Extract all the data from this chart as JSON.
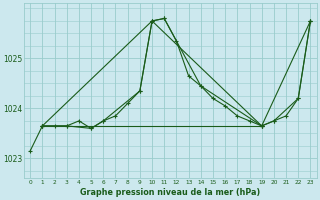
{
  "title": "Graphe pression niveau de la mer (hPa)",
  "bg_color": "#cce8ee",
  "grid_color": "#99cccc",
  "line_color": "#1a5c1a",
  "xlim": [
    -0.5,
    23.5
  ],
  "ylim": [
    1022.6,
    1026.1
  ],
  "yticks": [
    1023,
    1024,
    1025
  ],
  "xticks": [
    0,
    1,
    2,
    3,
    4,
    5,
    6,
    7,
    8,
    9,
    10,
    11,
    12,
    13,
    14,
    15,
    16,
    17,
    18,
    19,
    20,
    21,
    22,
    23
  ],
  "series1_x": [
    0,
    1,
    2,
    3,
    4,
    5,
    6,
    7,
    8,
    9,
    10,
    11,
    12,
    13,
    14,
    15,
    16,
    17,
    18,
    19,
    20,
    21,
    22,
    23
  ],
  "series1_y": [
    1023.15,
    1023.65,
    1023.65,
    1023.65,
    1023.75,
    1023.6,
    1023.75,
    1023.85,
    1024.1,
    1024.35,
    1025.75,
    1025.8,
    1025.35,
    1024.65,
    1024.45,
    1024.2,
    1024.05,
    1023.85,
    1023.75,
    1023.65,
    1023.75,
    1023.85,
    1024.2,
    1025.75
  ],
  "series2_x": [
    1,
    3,
    5,
    6,
    9,
    10,
    11,
    14,
    19,
    20,
    22,
    23
  ],
  "series2_y": [
    1023.65,
    1023.65,
    1023.6,
    1023.75,
    1024.35,
    1025.75,
    1025.8,
    1024.45,
    1023.65,
    1023.75,
    1024.2,
    1025.75
  ],
  "series3_x": [
    1,
    19
  ],
  "series3_y": [
    1023.65,
    1023.65
  ],
  "series4_x": [
    1,
    10,
    19,
    23
  ],
  "series4_y": [
    1023.65,
    1025.75,
    1023.65,
    1025.75
  ]
}
